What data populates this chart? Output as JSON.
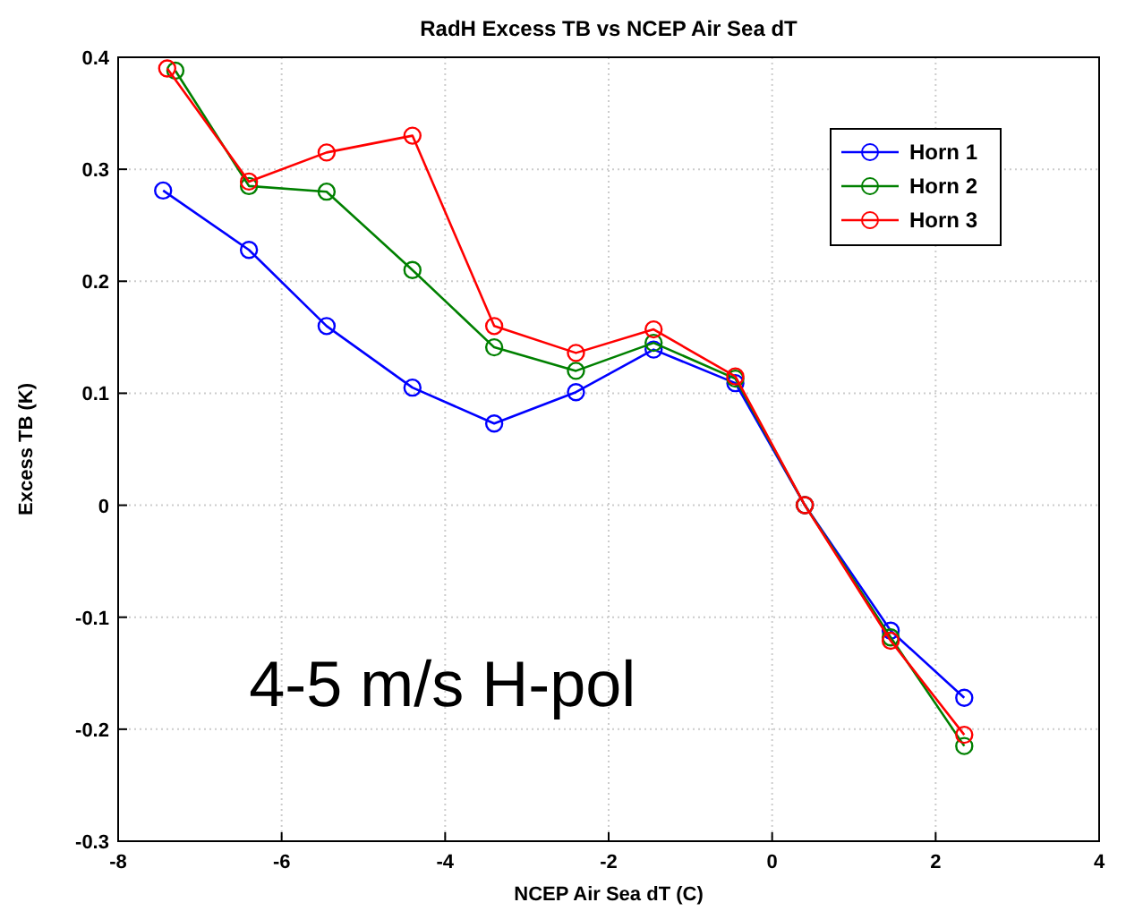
{
  "chart_data": {
    "type": "line",
    "title": "RadH Excess TB vs NCEP Air Sea dT",
    "xlabel": "NCEP Air Sea dT (C)",
    "ylabel": "Excess TB (K)",
    "xlim": [
      -8,
      4
    ],
    "xticks": [
      -8,
      -6,
      -4,
      -2,
      0,
      2,
      4
    ],
    "ylim": [
      -0.3,
      0.4
    ],
    "yticks": [
      -0.3,
      -0.2,
      -0.1,
      0,
      0.1,
      0.2,
      0.3,
      0.4
    ],
    "grid": true,
    "legend": "top right",
    "marker": "circle",
    "line_style": "solid",
    "annotations": [
      "4-5 m/s H-pol"
    ],
    "series": [
      {
        "name": "Horn 1",
        "color": "#0000ff",
        "x": [
          -7.45,
          -6.4,
          -5.45,
          -4.4,
          -3.4,
          -2.4,
          -1.45,
          -0.45,
          0.4,
          1.45,
          2.35
        ],
        "values": [
          0.281,
          0.228,
          0.16,
          0.105,
          0.073,
          0.101,
          0.139,
          0.109,
          0,
          -0.112,
          -0.172
        ]
      },
      {
        "name": "Horn 2",
        "color": "#008000",
        "x": [
          -7.3,
          -6.4,
          -5.45,
          -4.4,
          -3.4,
          -2.4,
          -1.45,
          -0.45,
          0.4,
          1.45,
          2.35
        ],
        "values": [
          0.388,
          0.285,
          0.28,
          0.21,
          0.141,
          0.12,
          0.145,
          0.113,
          0,
          -0.118,
          -0.215
        ]
      },
      {
        "name": "Horn 3",
        "color": "#ff0000",
        "x": [
          -7.4,
          -6.4,
          -5.45,
          -4.4,
          -3.4,
          -2.4,
          -1.45,
          -0.45,
          0.4,
          1.45,
          2.35
        ],
        "values": [
          0.39,
          0.289,
          0.315,
          0.33,
          0.16,
          0.136,
          0.157,
          0.115,
          0,
          -0.121,
          -0.205
        ]
      }
    ]
  }
}
